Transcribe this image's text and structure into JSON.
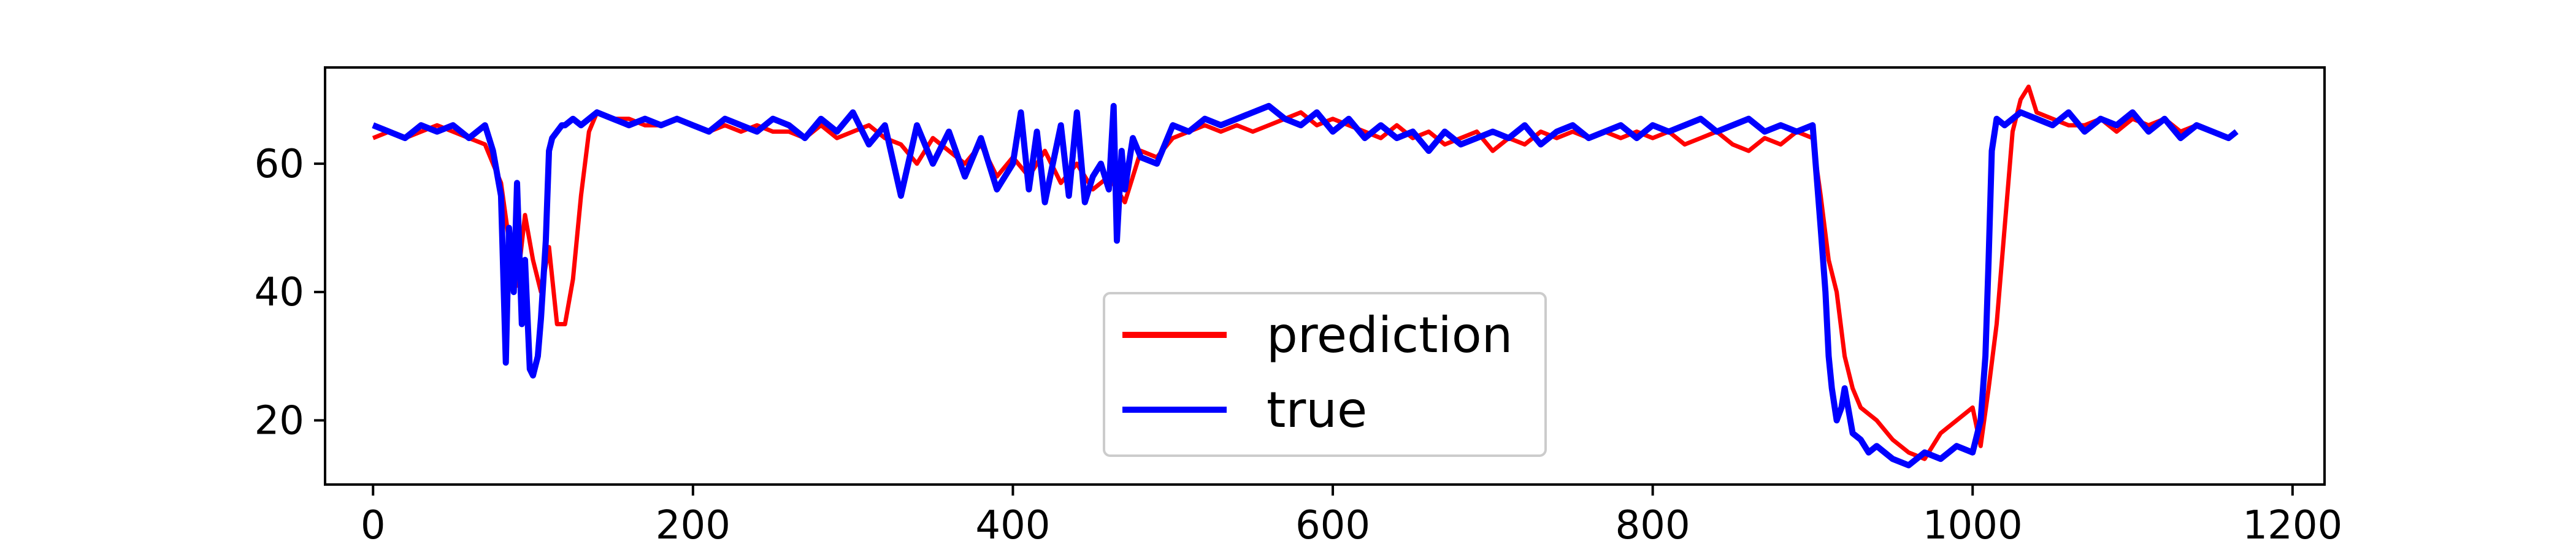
{
  "chart_data": {
    "type": "line",
    "title": "",
    "xlabel": "",
    "ylabel": "",
    "xlim": [
      -30,
      1220
    ],
    "ylim": [
      10,
      75
    ],
    "xticks": [
      0,
      200,
      400,
      600,
      800,
      1000,
      1200
    ],
    "yticks": [
      20,
      40,
      60
    ],
    "grid": false,
    "legend_position": "lower-center",
    "series": [
      {
        "name": "prediction",
        "color": "#ff0000",
        "x": [
          0,
          10,
          20,
          30,
          40,
          50,
          60,
          70,
          75,
          80,
          85,
          90,
          95,
          100,
          105,
          110,
          115,
          120,
          125,
          130,
          135,
          140,
          150,
          160,
          170,
          180,
          190,
          200,
          210,
          220,
          230,
          240,
          250,
          260,
          270,
          280,
          290,
          300,
          310,
          320,
          330,
          340,
          350,
          360,
          370,
          380,
          390,
          400,
          410,
          420,
          430,
          440,
          450,
          460,
          470,
          480,
          490,
          500,
          510,
          520,
          530,
          540,
          550,
          560,
          570,
          580,
          590,
          600,
          610,
          620,
          630,
          640,
          650,
          660,
          670,
          680,
          690,
          700,
          710,
          720,
          730,
          740,
          750,
          760,
          770,
          780,
          790,
          800,
          810,
          820,
          830,
          840,
          850,
          860,
          870,
          880,
          890,
          900,
          905,
          910,
          915,
          920,
          925,
          930,
          940,
          950,
          960,
          970,
          980,
          990,
          1000,
          1005,
          1010,
          1015,
          1020,
          1025,
          1030,
          1035,
          1040,
          1050,
          1060,
          1070,
          1080,
          1090,
          1100,
          1110,
          1120,
          1130,
          1140,
          1150,
          1160,
          1165
        ],
        "y": [
          64,
          65,
          64,
          65,
          66,
          65,
          64,
          63,
          60,
          57,
          48,
          41,
          52,
          45,
          40,
          47,
          35,
          35,
          42,
          55,
          65,
          68,
          67,
          67,
          66,
          66,
          67,
          66,
          65,
          66,
          65,
          66,
          65,
          65,
          64,
          66,
          64,
          65,
          66,
          64,
          63,
          60,
          64,
          62,
          60,
          63,
          58,
          61,
          58,
          62,
          57,
          60,
          56,
          58,
          54,
          62,
          61,
          64,
          65,
          66,
          65,
          66,
          65,
          66,
          67,
          68,
          66,
          67,
          66,
          65,
          64,
          66,
          64,
          65,
          63,
          64,
          65,
          62,
          64,
          63,
          65,
          64,
          65,
          64,
          65,
          64,
          65,
          64,
          65,
          63,
          64,
          65,
          63,
          62,
          64,
          63,
          65,
          64,
          55,
          45,
          40,
          30,
          25,
          22,
          20,
          17,
          15,
          14,
          18,
          20,
          22,
          16,
          25,
          35,
          50,
          65,
          70,
          72,
          68,
          67,
          66,
          66,
          67,
          65,
          67,
          66,
          67,
          65,
          66,
          65,
          64,
          65
        ],
        "values": [
          64,
          65,
          64,
          65,
          66,
          65,
          64,
          63,
          60,
          57,
          48,
          41,
          52,
          45,
          40,
          47,
          35,
          35,
          42,
          55,
          65,
          68,
          67,
          67,
          66,
          66,
          67,
          66,
          65,
          66,
          65,
          66,
          65,
          65,
          64,
          66,
          64,
          65,
          66,
          64,
          63,
          60,
          64,
          62,
          60,
          63,
          58,
          61,
          58,
          62,
          57,
          60,
          56,
          58,
          54,
          62,
          61,
          64,
          65,
          66,
          65,
          66,
          65,
          66,
          67,
          68,
          66,
          67,
          66,
          65,
          64,
          66,
          64,
          65,
          63,
          64,
          65,
          62,
          64,
          63,
          65,
          64,
          65,
          64,
          65,
          64,
          65,
          64,
          65,
          63,
          64,
          65,
          63,
          62,
          64,
          63,
          65,
          64,
          55,
          45,
          40,
          30,
          25,
          22,
          20,
          17,
          15,
          14,
          18,
          20,
          22,
          16,
          25,
          35,
          50,
          65,
          70,
          72,
          68,
          67,
          66,
          66,
          67,
          65,
          67,
          66,
          67,
          65,
          66,
          65,
          64,
          65
        ]
      },
      {
        "name": "true",
        "color": "#0000ff",
        "x": [
          0,
          10,
          20,
          30,
          40,
          50,
          60,
          70,
          75,
          80,
          83,
          85,
          88,
          90,
          93,
          95,
          98,
          100,
          103,
          105,
          108,
          110,
          112,
          115,
          118,
          120,
          125,
          130,
          140,
          150,
          160,
          170,
          180,
          190,
          200,
          210,
          220,
          230,
          240,
          250,
          260,
          270,
          280,
          290,
          300,
          310,
          320,
          330,
          340,
          350,
          360,
          370,
          380,
          390,
          400,
          405,
          410,
          415,
          420,
          425,
          430,
          435,
          440,
          445,
          450,
          455,
          460,
          463,
          465,
          468,
          470,
          475,
          480,
          490,
          500,
          510,
          520,
          530,
          540,
          550,
          560,
          570,
          580,
          590,
          600,
          610,
          620,
          630,
          640,
          650,
          660,
          670,
          680,
          690,
          700,
          710,
          720,
          730,
          740,
          750,
          760,
          770,
          780,
          790,
          800,
          810,
          820,
          830,
          840,
          850,
          860,
          870,
          880,
          890,
          900,
          905,
          908,
          910,
          912,
          915,
          918,
          920,
          925,
          930,
          935,
          940,
          950,
          960,
          970,
          980,
          990,
          1000,
          1005,
          1008,
          1010,
          1012,
          1015,
          1020,
          1030,
          1040,
          1050,
          1060,
          1070,
          1080,
          1090,
          1100,
          1110,
          1120,
          1130,
          1140,
          1150,
          1160,
          1165
        ],
        "y": [
          66,
          65,
          64,
          66,
          65,
          66,
          64,
          66,
          62,
          55,
          29,
          50,
          40,
          57,
          35,
          45,
          28,
          27,
          30,
          36,
          48,
          62,
          64,
          65,
          66,
          66,
          67,
          66,
          68,
          67,
          66,
          67,
          66,
          67,
          66,
          65,
          67,
          66,
          65,
          67,
          66,
          64,
          67,
          65,
          68,
          63,
          66,
          55,
          66,
          60,
          65,
          58,
          64,
          56,
          60,
          68,
          56,
          65,
          54,
          60,
          66,
          55,
          68,
          54,
          58,
          60,
          56,
          69,
          48,
          62,
          56,
          64,
          61,
          60,
          66,
          65,
          67,
          66,
          67,
          68,
          69,
          67,
          66,
          68,
          65,
          67,
          64,
          66,
          64,
          65,
          62,
          65,
          63,
          64,
          65,
          64,
          66,
          63,
          65,
          66,
          64,
          65,
          66,
          64,
          66,
          65,
          66,
          67,
          65,
          66,
          67,
          65,
          66,
          65,
          66,
          50,
          40,
          30,
          25,
          20,
          22,
          25,
          18,
          17,
          15,
          16,
          14,
          13,
          15,
          14,
          16,
          15,
          20,
          30,
          45,
          62,
          67,
          66,
          68,
          67,
          66,
          68,
          65,
          67,
          66,
          68,
          65,
          67,
          64,
          66,
          65,
          64,
          65
        ],
        "values": [
          66,
          65,
          64,
          66,
          65,
          66,
          64,
          66,
          62,
          55,
          29,
          50,
          40,
          57,
          35,
          45,
          28,
          27,
          30,
          36,
          48,
          62,
          64,
          65,
          66,
          66,
          67,
          66,
          68,
          67,
          66,
          67,
          66,
          67,
          66,
          65,
          67,
          66,
          65,
          67,
          66,
          64,
          67,
          65,
          68,
          63,
          66,
          55,
          66,
          60,
          65,
          58,
          64,
          56,
          60,
          68,
          56,
          65,
          54,
          60,
          66,
          55,
          68,
          54,
          58,
          60,
          56,
          69,
          48,
          62,
          56,
          64,
          61,
          60,
          66,
          65,
          67,
          66,
          67,
          68,
          69,
          67,
          66,
          68,
          65,
          67,
          64,
          66,
          64,
          65,
          62,
          65,
          63,
          64,
          65,
          64,
          66,
          63,
          65,
          66,
          64,
          65,
          66,
          64,
          66,
          65,
          66,
          67,
          65,
          66,
          67,
          65,
          66,
          65,
          66,
          50,
          40,
          30,
          25,
          20,
          22,
          25,
          18,
          17,
          15,
          16,
          14,
          13,
          15,
          14,
          16,
          15,
          20,
          30,
          45,
          62,
          67,
          66,
          68,
          67,
          66,
          68,
          65,
          67,
          66,
          68,
          65,
          67,
          64,
          66,
          65,
          64,
          65
        ]
      }
    ]
  }
}
